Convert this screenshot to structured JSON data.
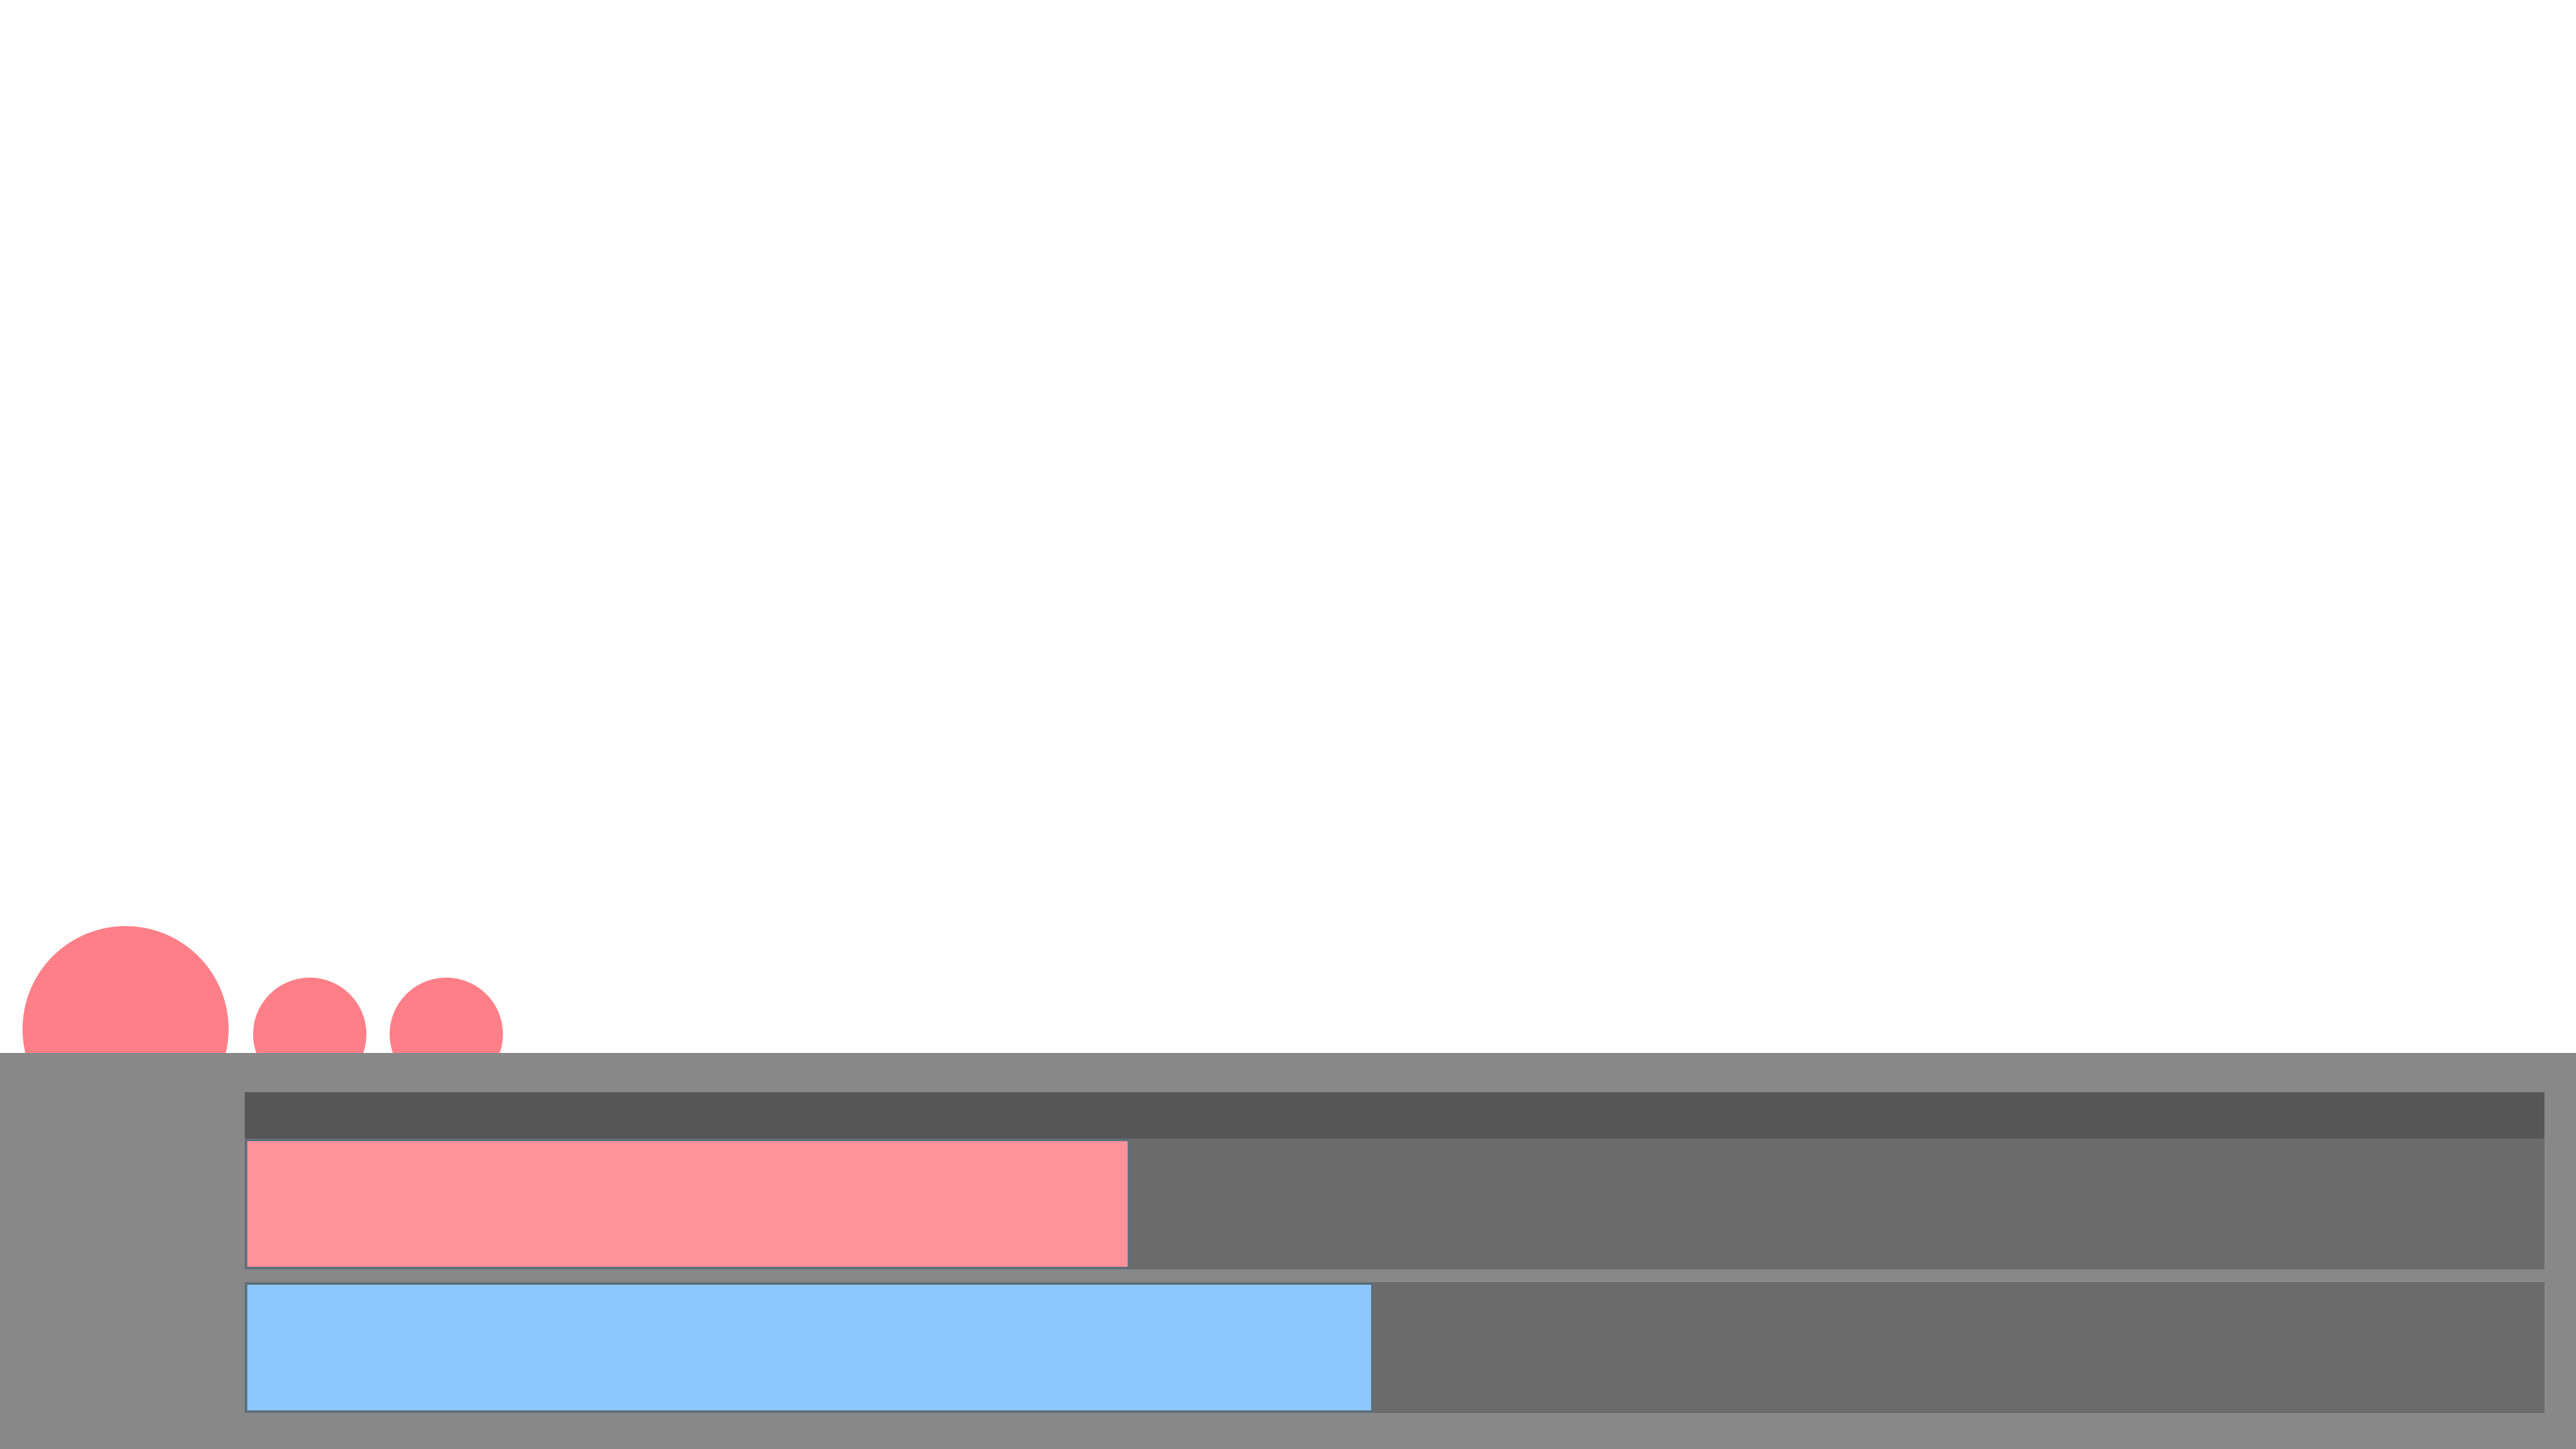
{
  "hud": {
    "health": {
      "fraction": 0.385,
      "color": "#ff9399"
    },
    "mana": {
      "fraction": 0.491,
      "color": "#8cc8ff"
    },
    "track_color": "#6b6b6b",
    "header_color": "#565656",
    "panel_color": "#888888"
  },
  "lives": {
    "count": 3,
    "color": "#ff7f88"
  }
}
